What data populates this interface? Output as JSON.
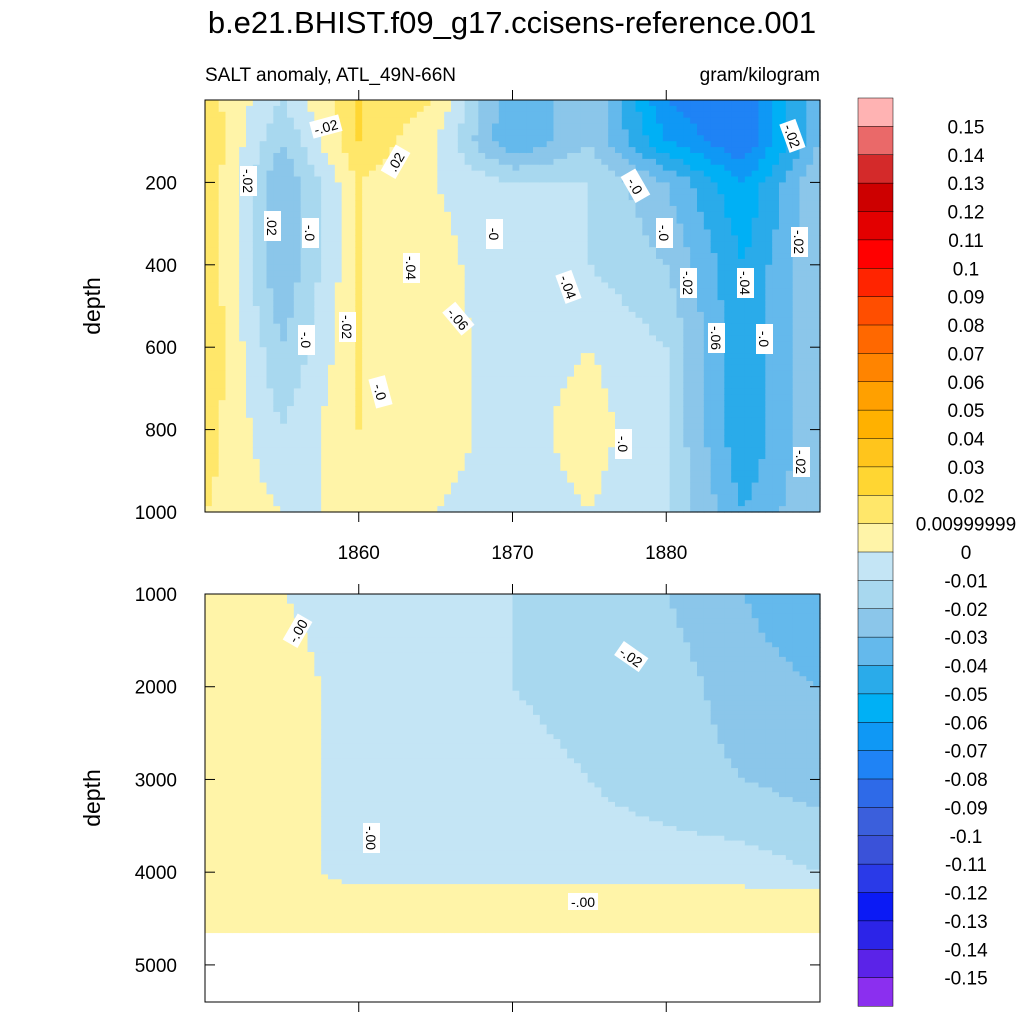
{
  "chart_data": [
    {
      "type": "heatmap",
      "title": "b.e21.BHIST.f09_g17.ccisens-reference.001",
      "subtitle_left": "SALT anomaly, ATL_49N-66N",
      "subtitle_right": "gram/kilogram",
      "ylabel": "depth",
      "xlim": [
        1850,
        1890
      ],
      "ylim": [
        1000,
        0
      ],
      "x_ticks": [
        1860,
        1870,
        1880
      ],
      "y_ticks": [
        200,
        400,
        600,
        800,
        1000
      ],
      "x": [
        1850,
        1855,
        1860,
        1865,
        1870,
        1875,
        1880,
        1885,
        1890
      ],
      "y": [
        0,
        100,
        200,
        400,
        600,
        800,
        1000
      ],
      "z": [
        [
          0.015,
          -0.01,
          0.02,
          0.01,
          -0.04,
          -0.02,
          -0.07,
          -0.08,
          -0.03
        ],
        [
          0.02,
          -0.02,
          0.02,
          0.0,
          -0.04,
          -0.02,
          -0.06,
          -0.08,
          -0.03
        ],
        [
          0.02,
          -0.03,
          0.01,
          0.0,
          -0.01,
          -0.01,
          -0.03,
          -0.06,
          -0.02
        ],
        [
          0.02,
          -0.03,
          0.01,
          0.005,
          -0.01,
          -0.01,
          -0.02,
          -0.05,
          -0.02
        ],
        [
          0.02,
          -0.02,
          0.01,
          0.005,
          -0.005,
          0.0,
          -0.01,
          -0.05,
          -0.02
        ],
        [
          0.015,
          -0.01,
          0.01,
          0.005,
          -0.005,
          0.005,
          -0.01,
          -0.05,
          -0.02
        ],
        [
          0.01,
          0.0,
          0.0,
          0.0,
          -0.005,
          0.0,
          -0.01,
          -0.04,
          -0.02
        ]
      ],
      "contour_labels": [
        "-.02",
        ".02",
        "-.02",
        ".02",
        "-.0",
        "-.04",
        "-0",
        "-.0",
        "-.0",
        "-.02",
        "-.04",
        "-.06",
        "-.02",
        "-.02",
        "-.02",
        "-.0",
        "-.0",
        "-.06",
        "-.04",
        "-.0",
        "-.02",
        "-.0"
      ]
    },
    {
      "type": "heatmap",
      "ylabel": "depth",
      "xlim": [
        1850,
        1890
      ],
      "ylim": [
        5400,
        1000
      ],
      "y_ticks": [
        1000,
        2000,
        3000,
        4000,
        5000
      ],
      "x": [
        1850,
        1855,
        1860,
        1865,
        1870,
        1875,
        1880,
        1885,
        1890
      ],
      "y": [
        1000,
        2000,
        3000,
        4000,
        4300,
        4650
      ],
      "z": [
        [
          0.01,
          0.0,
          -0.005,
          -0.005,
          -0.01,
          -0.015,
          -0.02,
          -0.03,
          -0.04
        ],
        [
          0.005,
          0.005,
          -0.005,
          -0.005,
          -0.01,
          -0.015,
          -0.015,
          -0.025,
          -0.03
        ],
        [
          0.005,
          0.005,
          -0.005,
          -0.005,
          -0.005,
          -0.01,
          -0.015,
          -0.02,
          -0.025
        ],
        [
          0.005,
          0.005,
          -0.005,
          -0.005,
          -0.005,
          -0.005,
          -0.005,
          -0.005,
          -0.01
        ],
        [
          0.005,
          0.005,
          0.005,
          0.005,
          0.005,
          0.005,
          0.005,
          0.005,
          0.005
        ],
        [
          0.005,
          0.005,
          0.005,
          0.005,
          0.005,
          0.005,
          0.005,
          0.005,
          0.005
        ]
      ],
      "contour_labels": [
        "-.00",
        "-.02",
        "-.00",
        "-.00"
      ]
    }
  ],
  "colorbar": {
    "labels": [
      "0.15",
      "0.14",
      "0.13",
      "0.12",
      "0.11",
      "0.1",
      "0.09",
      "0.08",
      "0.07",
      "0.06",
      "0.05",
      "0.04",
      "0.03",
      "0.02",
      "0.00999999",
      "0",
      "-0.01",
      "-0.02",
      "-0.03",
      "-0.04",
      "-0.05",
      "-0.06",
      "-0.07",
      "-0.08",
      "-0.09",
      "-0.1",
      "-0.11",
      "-0.12",
      "-0.13",
      "-0.14",
      "-0.15"
    ],
    "colors": [
      "#ffb3b3",
      "#ea6969",
      "#d42a2a",
      "#cd0000",
      "#e30000",
      "#ff0000",
      "#ff2400",
      "#ff4e00",
      "#ff6800",
      "#ff8400",
      "#ffa000",
      "#ffb100",
      "#ffc51c",
      "#ffd632",
      "#ffe76a",
      "#fff4a8",
      "#c4e5f5",
      "#a8d8ef",
      "#8bc6ea",
      "#64b9ec",
      "#2aabea",
      "#00b0f5",
      "#0f98f5",
      "#1f83f5",
      "#2e6ae8",
      "#3b5fdc",
      "#3a52d9",
      "#2a3ae8",
      "#0b1af5",
      "#2c24e8",
      "#5b23e8",
      "#8b2fef"
    ]
  }
}
